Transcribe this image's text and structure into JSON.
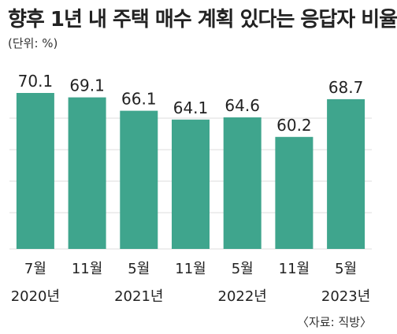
{
  "title": "향후 1년 내 주택 매수 계획 있다는 응답자 비율",
  "unit_label": "(단위: %)",
  "source": "〈자료: 직방〉",
  "colors": {
    "bar": "#3fa58d",
    "grid": "#dddddd",
    "text": "#222222"
  },
  "chart_data": {
    "type": "bar",
    "title": "향후 1년 내 주택 매수 계획 있다는 응답자 비율",
    "ylabel": "",
    "xlabel": "",
    "unit": "%",
    "grid": true,
    "categories": [
      {
        "month": "7월",
        "year": "2020년"
      },
      {
        "month": "11월",
        "year": ""
      },
      {
        "month": "5월",
        "year": "2021년"
      },
      {
        "month": "11월",
        "year": ""
      },
      {
        "month": "5월",
        "year": "2022년"
      },
      {
        "month": "11월",
        "year": ""
      },
      {
        "month": "5월",
        "year": "2023년"
      }
    ],
    "values": [
      70.1,
      69.1,
      66.1,
      64.1,
      64.6,
      60.2,
      68.7
    ],
    "value_labels": [
      "70.1",
      "69.1",
      "66.1",
      "64.1",
      "64.6",
      "60.2",
      "68.7"
    ]
  }
}
